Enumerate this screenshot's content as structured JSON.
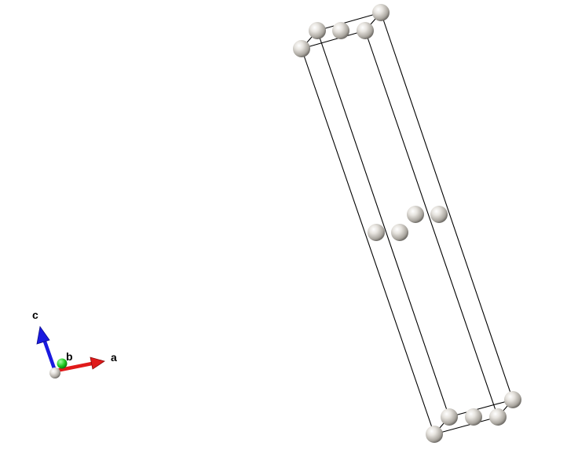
{
  "viewer": {
    "background": "#ffffff",
    "cell_edge_color": "#000000",
    "atom_color": "#c8c4bc"
  },
  "axes": {
    "a": {
      "label": "a",
      "color": "#e01a1a"
    },
    "b": {
      "label": "b",
      "color": "#1fcf1f"
    },
    "c": {
      "label": "c",
      "color": "#1a1adf"
    },
    "origin_color": "#c8c4bc"
  }
}
